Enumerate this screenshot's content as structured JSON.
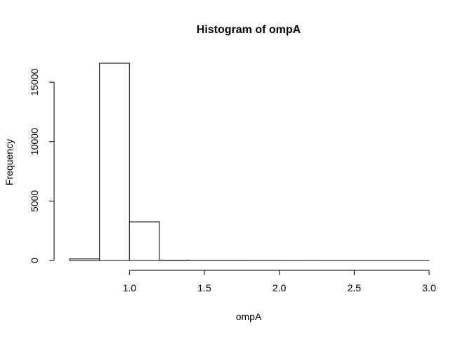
{
  "chart_data": {
    "type": "bar",
    "title": "Histogram of ompA",
    "xlabel": "ompA",
    "ylabel": "Frequency",
    "bins": [
      {
        "x0": 0.6,
        "x1": 0.8,
        "count": 130
      },
      {
        "x0": 0.8,
        "x1": 1.0,
        "count": 16600
      },
      {
        "x0": 1.0,
        "x1": 1.2,
        "count": 3250
      },
      {
        "x0": 1.2,
        "x1": 1.4,
        "count": 15
      },
      {
        "x0": 1.4,
        "x1": 1.6,
        "count": 5
      },
      {
        "x0": 1.6,
        "x1": 1.8,
        "count": 5
      },
      {
        "x0": 1.8,
        "x1": 2.0,
        "count": 3
      },
      {
        "x0": 2.0,
        "x1": 2.2,
        "count": 2
      },
      {
        "x0": 2.2,
        "x1": 2.4,
        "count": 2
      },
      {
        "x0": 2.4,
        "x1": 2.6,
        "count": 1
      },
      {
        "x0": 2.6,
        "x1": 2.8,
        "count": 1
      },
      {
        "x0": 2.8,
        "x1": 3.0,
        "count": 1
      }
    ],
    "x_ticks": [
      1.0,
      1.5,
      2.0,
      2.5,
      3.0
    ],
    "x_tick_labels": [
      "1.0",
      "1.5",
      "2.0",
      "2.5",
      "3.0"
    ],
    "y_ticks": [
      0,
      5000,
      10000,
      15000
    ],
    "y_tick_labels": [
      "0",
      "5000",
      "10000",
      "15000"
    ],
    "xlim": [
      0.6,
      3.0
    ],
    "ylim": [
      0,
      16600
    ],
    "grid": false,
    "colors": {
      "bar_fill": "#ffffff",
      "bar_stroke": "#000000",
      "axis": "#000000"
    }
  }
}
